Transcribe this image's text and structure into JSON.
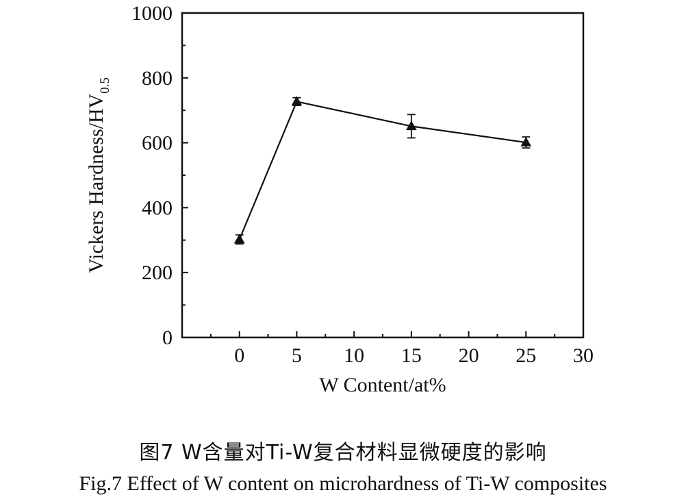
{
  "chart_data": {
    "type": "line",
    "xlabel": "W Content/at%",
    "ylabel_main": "Vickers Hardness/HV",
    "ylabel_sub": "0.5",
    "xlim": [
      -5,
      30
    ],
    "ylim": [
      0,
      1000
    ],
    "xticks": [
      0,
      5,
      10,
      15,
      20,
      25,
      30
    ],
    "yticks": [
      0,
      200,
      400,
      600,
      800,
      1000
    ],
    "grid": false,
    "marker": "triangle",
    "series": [
      {
        "x": [
          0,
          5,
          15,
          25
        ],
        "y": [
          302,
          727,
          651,
          601
        ],
        "err": [
          14,
          12,
          36,
          17
        ]
      }
    ]
  },
  "caption": {
    "cn": "图7  W含量对Ti-W复合材料显微硬度的影响",
    "en": "Fig.7  Effect of W content on microhardness of Ti-W composites"
  }
}
